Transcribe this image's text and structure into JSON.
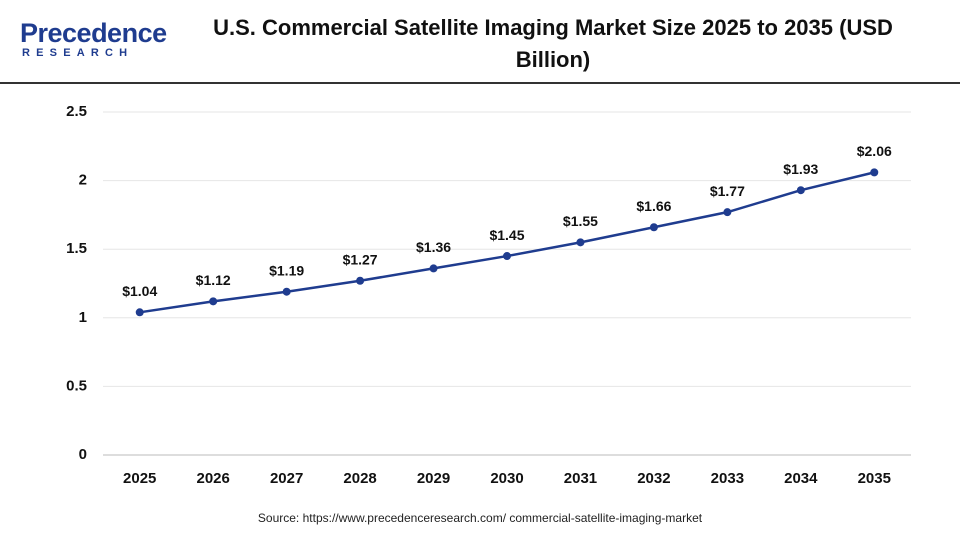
{
  "logo": {
    "name": "Precedence",
    "tagline": "RESEARCH"
  },
  "chart_data": {
    "type": "line",
    "title": "U.S. Commercial Satellite Imaging Market Size 2025 to 2035 (USD Billion)",
    "source": "Source: https://www.precedenceresearch.com/ commercial-satellite-imaging-market",
    "categories": [
      "2025",
      "2026",
      "2027",
      "2028",
      "2029",
      "2030",
      "2031",
      "2032",
      "2033",
      "2034",
      "2035"
    ],
    "series": [
      {
        "color": "#1f3c8f",
        "values": [
          1.04,
          1.12,
          1.19,
          1.27,
          1.36,
          1.45,
          1.55,
          1.66,
          1.77,
          1.93,
          2.06
        ],
        "value_labels": [
          "$1.04",
          "$1.12",
          "$1.19",
          "$1.27",
          "$1.36",
          "$1.45",
          "$1.55",
          "$1.66",
          "$1.77",
          "$1.93",
          "$2.06"
        ]
      }
    ],
    "ylim": [
      0,
      2.5
    ],
    "yticks": [
      0,
      0.5,
      1,
      1.5,
      2,
      2.5
    ],
    "grid": true
  }
}
